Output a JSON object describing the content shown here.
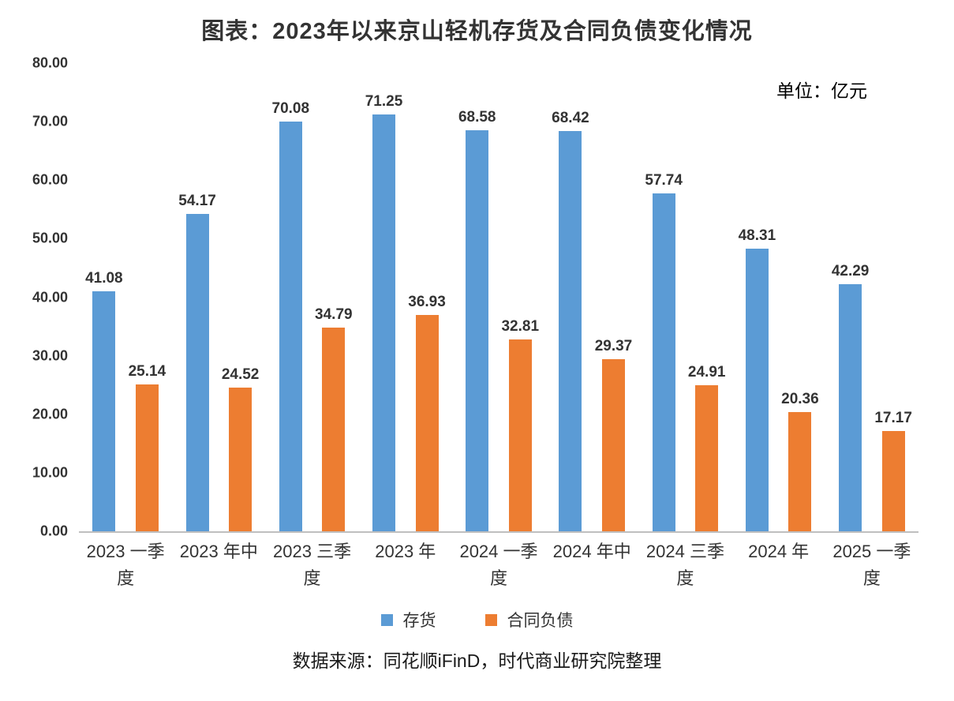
{
  "chart_data": {
    "type": "bar",
    "title": "图表：2023年以来京山轻机存货及合同负债变化情况",
    "unit_label": "单位：亿元",
    "categories": [
      "2023 一季\n度",
      "2023 年中",
      "2023 三季\n度",
      "2023 年",
      "2024 一季\n度",
      "2024 年中",
      "2024 三季\n度",
      "2024 年",
      "2025 一季\n度"
    ],
    "series": [
      {
        "name": "存货",
        "color": "#5B9BD5",
        "values": [
          41.08,
          54.17,
          70.08,
          71.25,
          68.58,
          68.42,
          57.74,
          48.31,
          42.29
        ]
      },
      {
        "name": "合同负债",
        "color": "#ED7D31",
        "values": [
          25.14,
          24.52,
          34.79,
          36.93,
          32.81,
          29.37,
          24.91,
          20.36,
          17.17
        ]
      }
    ],
    "xlabel": "",
    "ylabel": "",
    "ylim": [
      0,
      80
    ],
    "y_ticks": [
      "80.00",
      "70.00",
      "60.00",
      "50.00",
      "40.00",
      "30.00",
      "20.00",
      "10.00",
      "0.00"
    ],
    "grid": false,
    "legend_position": "bottom",
    "source": "数据来源：同花顺iFinD，时代商业研究院整理"
  }
}
